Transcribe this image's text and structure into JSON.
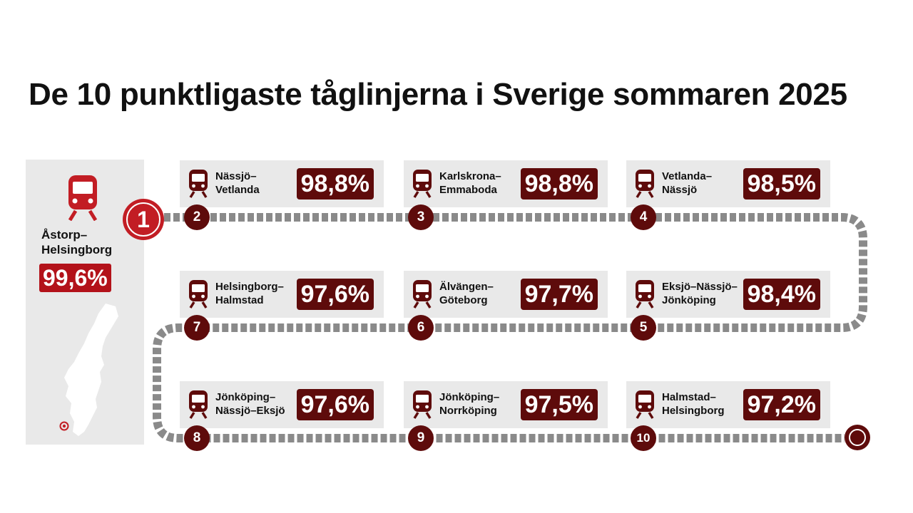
{
  "title": "De 10 punktligaste tåglinjerna i Sverige sommaren 2025",
  "icons": {
    "train": "train-front-icon",
    "map": "sweden-map-icon",
    "location": "location-pin-icon",
    "end": "end-terminal-icon"
  },
  "colors": {
    "accent": "#b3121a",
    "dark": "#5e0b0b",
    "panel": "#e9e9e9",
    "track": "#8a8a8a"
  },
  "winner": {
    "rank": "1",
    "name_line1": "Åstorp–",
    "name_line2": "Helsingborg",
    "percent": "99,6%"
  },
  "routes": [
    {
      "rank": "2",
      "line1": "Nässjö–",
      "line2": "Vetlanda",
      "percent": "98,8%"
    },
    {
      "rank": "3",
      "line1": "Karlskrona–",
      "line2": "Emmaboda",
      "percent": "98,8%"
    },
    {
      "rank": "4",
      "line1": "Vetlanda–",
      "line2": "Nässjö",
      "percent": "98,5%"
    },
    {
      "rank": "5",
      "line1": "Eksjö–Nässjö–",
      "line2": "Jönköping",
      "percent": "98,4%"
    },
    {
      "rank": "6",
      "line1": "Älvängen–",
      "line2": "Göteborg",
      "percent": "97,7%"
    },
    {
      "rank": "7",
      "line1": "Helsingborg–",
      "line2": "Halmstad",
      "percent": "97,6%"
    },
    {
      "rank": "8",
      "line1": "Jönköping–",
      "line2": "Nässjö–Eksjö",
      "percent": "97,6%"
    },
    {
      "rank": "9",
      "line1": "Jönköping–",
      "line2": "Norrköping",
      "percent": "97,5%"
    },
    {
      "rank": "10",
      "line1": "Halmstad–",
      "line2": "Helsingborg",
      "percent": "97,2%"
    }
  ]
}
